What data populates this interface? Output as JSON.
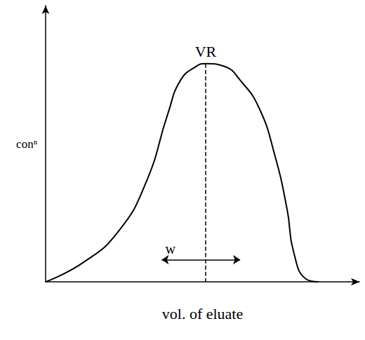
{
  "chart_data": {
    "type": "line",
    "xlabel": "vol. of eluate",
    "ylabel": "conⁿ",
    "x": [
      0,
      12,
      23,
      32,
      39,
      43,
      48,
      51,
      57,
      62,
      68,
      73,
      77,
      79,
      83,
      87
    ],
    "values": [
      0,
      7,
      18,
      36,
      61,
      73,
      78,
      79,
      78,
      73,
      63,
      46,
      26,
      11,
      1,
      0
    ],
    "color": "#000000",
    "xlim": [
      0,
      100
    ],
    "ylim": [
      0,
      100
    ],
    "grid": false,
    "tick_labels": false,
    "annotations": [
      {
        "text": "VR",
        "x": 51,
        "y": 79
      }
    ],
    "width": {
      "text": "w",
      "x": [
        37,
        62
      ],
      "y": 8
    }
  }
}
